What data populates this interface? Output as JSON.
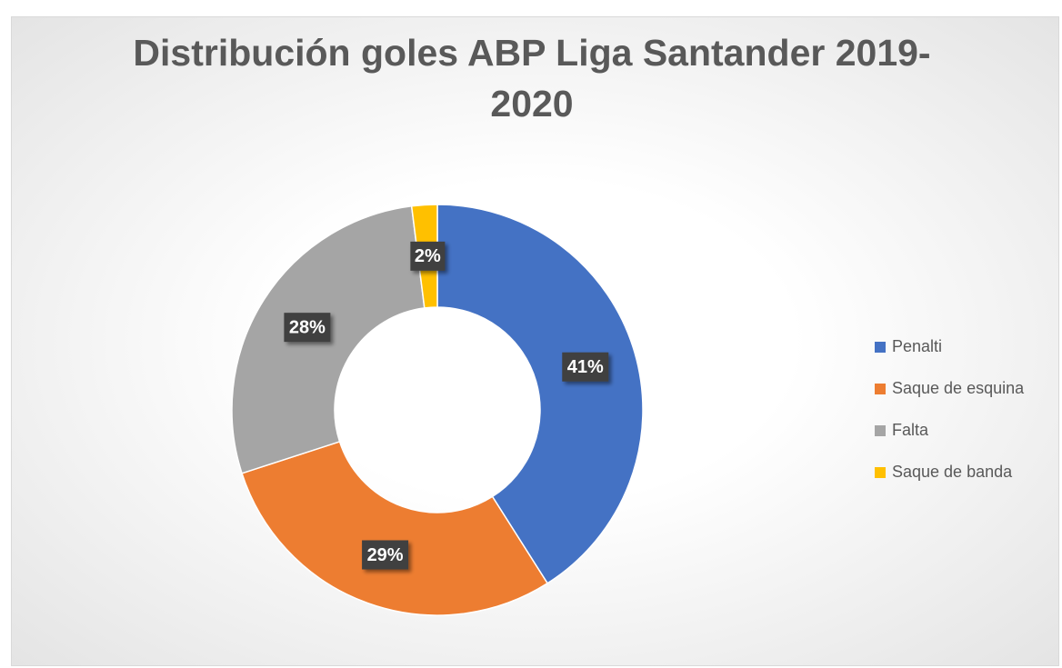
{
  "chart_data": {
    "type": "donut",
    "title": "Distribución goles ABP Liga Santander 2019-2020",
    "categories": [
      "Penalti",
      "Saque de esquina",
      "Falta",
      "Saque de banda"
    ],
    "values": [
      41,
      29,
      28,
      2
    ],
    "value_labels": [
      "41%",
      "29%",
      "28%",
      "2%"
    ],
    "colors": [
      "#4472c4",
      "#ed7d31",
      "#a5a5a5",
      "#ffc000"
    ],
    "legend": "right"
  }
}
